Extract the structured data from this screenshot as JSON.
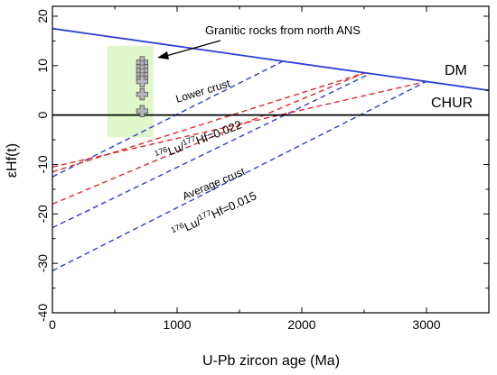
{
  "chart_data": {
    "type": "line",
    "title": "",
    "xlabel": "U-Pb zircon age (Ma)",
    "ylabel": "εHf(t)",
    "xlim": [
      0,
      3500
    ],
    "ylim": [
      -40,
      22
    ],
    "xticks": [
      0,
      1000,
      2000,
      3000
    ],
    "yticks": [
      -40,
      -30,
      -20,
      -10,
      0,
      10,
      20
    ],
    "grid": false,
    "legend": "none",
    "reference_lines": [
      {
        "name": "DM",
        "x": [
          0,
          3500
        ],
        "y": [
          17.5,
          5.0
        ],
        "color": "#2b3fd6",
        "style": "solid"
      },
      {
        "name": "CHUR",
        "x": [
          0,
          3500
        ],
        "y": [
          0,
          0
        ],
        "color": "#000000",
        "style": "solid"
      }
    ],
    "evolution_lines": [
      {
        "x": [
          0,
          1850
        ],
        "y": [
          -12.5,
          10.9
        ],
        "color": "#2b3fd6",
        "style": "dashed"
      },
      {
        "x": [
          0,
          2500
        ],
        "y": [
          -11.5,
          8.5
        ],
        "color": "#e02a2a",
        "style": "dashed"
      },
      {
        "x": [
          0,
          2550
        ],
        "y": [
          -22.8,
          8.4
        ],
        "color": "#2b3fd6",
        "style": "dashed"
      },
      {
        "x": [
          0,
          2500
        ],
        "y": [
          -18.0,
          8.5
        ],
        "color": "#e02a2a",
        "style": "dashed"
      },
      {
        "x": [
          0,
          3000
        ],
        "y": [
          -10.5,
          6.8
        ],
        "color": "#e02a2a",
        "style": "dashed"
      },
      {
        "x": [
          0,
          3000
        ],
        "y": [
          -31.5,
          6.8
        ],
        "color": "#2b3fd6",
        "style": "dashed"
      }
    ],
    "sample_field": {
      "x": [
        440,
        810
      ],
      "y": [
        -4.5,
        14.0
      ],
      "color": "#dff7c9"
    },
    "samples": {
      "color": "#b5b5b5",
      "points": [
        {
          "x": 720,
          "y": 10.7
        },
        {
          "x": 720,
          "y": 9.8
        },
        {
          "x": 720,
          "y": 9.0
        },
        {
          "x": 720,
          "y": 8.2
        },
        {
          "x": 720,
          "y": 7.4
        },
        {
          "x": 720,
          "y": 6.8
        },
        {
          "x": 720,
          "y": 4.2
        },
        {
          "x": 720,
          "y": 0.8
        }
      ]
    },
    "labels": {
      "dm": "DM",
      "chur": "CHUR",
      "annotation": "Granitic rocks from north ANS",
      "lower_crust": "Lower crust",
      "average_crust": "Average crust",
      "ratio_1": {
        "iso1": "176",
        "el1": "Lu/",
        "iso2": "177",
        "el2": "Hf=0.022"
      },
      "ratio_2": {
        "iso1": "176",
        "el1": "Lu/",
        "iso2": "177",
        "el2": "Hf=0.015"
      }
    }
  }
}
